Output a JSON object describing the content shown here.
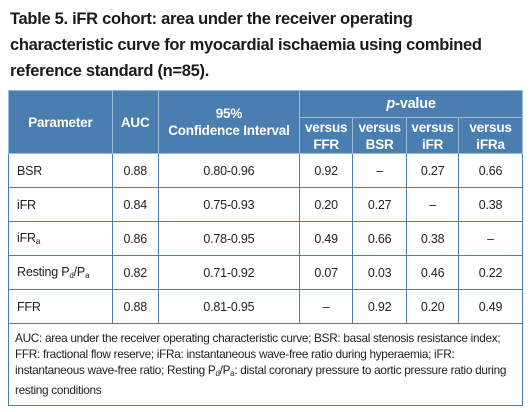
{
  "title_lines": [
    "Table 5. iFR cohort: area under the receiver operating",
    "characteristic curve for myocardial ischaemia using combined",
    "reference standard (n=85)."
  ],
  "table": {
    "header": {
      "parameter": "Parameter",
      "auc": "AUC",
      "ci": [
        "95%",
        "Confidence Interval"
      ],
      "p_value": [
        {
          "italic": "p"
        },
        {
          "text": "-value"
        }
      ],
      "versus": [
        [
          "versus",
          "FFR"
        ],
        [
          "versus",
          "BSR"
        ],
        [
          "versus",
          "iFR"
        ],
        [
          "versus",
          "iFRa"
        ]
      ]
    },
    "rows": [
      {
        "label": [
          {
            "text": "BSR"
          }
        ],
        "cells": [
          "0.88",
          "0.80-0.96",
          "0.92",
          "–",
          "0.27",
          "0.66"
        ]
      },
      {
        "label": [
          {
            "text": "iFR"
          }
        ],
        "cells": [
          "0.84",
          "0.75-0.93",
          "0.20",
          "0.27",
          "–",
          "0.38"
        ]
      },
      {
        "label": [
          {
            "text": "iFR"
          },
          {
            "sub": "a"
          }
        ],
        "cells": [
          "0.86",
          "0.78-0.95",
          "0.49",
          "0.66",
          "0.38",
          "–"
        ]
      },
      {
        "label": [
          {
            "text": "Resting P"
          },
          {
            "sub": "d"
          },
          {
            "text": "/P"
          },
          {
            "sub": "a"
          }
        ],
        "cells": [
          "0.82",
          "0.71-0.92",
          "0.07",
          "0.03",
          "0.46",
          "0.22"
        ]
      },
      {
        "label": [
          {
            "text": "FFR"
          }
        ],
        "cells": [
          "0.88",
          "0.81-0.95",
          "–",
          "0.92",
          "0.20",
          "0.49"
        ]
      }
    ],
    "footnote": [
      {
        "text": "AUC: area under the receiver operating characteristic curve; BSR: basal stenosis resistance index; FFR: fractional flow reserve; iFRa: instantaneous wave-free ratio during hyperaemia; iFR: instantaneous wave-free ratio; Resting P"
      },
      {
        "sub": "d"
      },
      {
        "text": "/P"
      },
      {
        "sub": "a"
      },
      {
        "text": ": distal coronary pressure to aortic pressure ratio during resting conditions"
      }
    ]
  }
}
